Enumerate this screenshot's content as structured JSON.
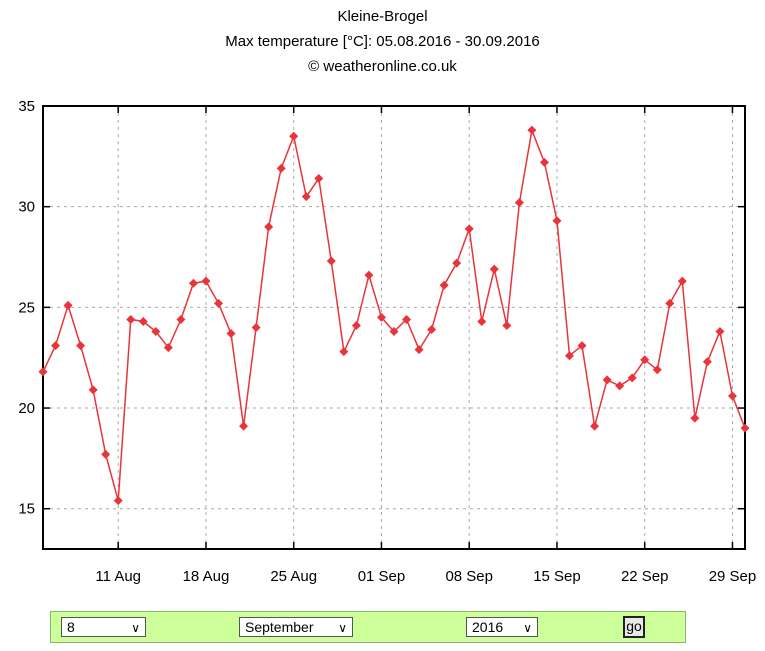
{
  "chart_data": {
    "type": "line",
    "title": "Kleine-Brogel",
    "subtitle": "Max temperature [°C]: 05.08.2016 - 30.09.2016",
    "credit": "© weatheronline.co.uk",
    "xlabel": "",
    "ylabel": "",
    "ylim": [
      13,
      35
    ],
    "y_ticks": [
      15,
      20,
      25,
      30,
      35
    ],
    "x_start": "2016-08-05",
    "x_end": "2016-09-30",
    "x_ticks": [
      {
        "date": "2016-08-11",
        "label": "11 Aug"
      },
      {
        "date": "2016-08-18",
        "label": "18 Aug"
      },
      {
        "date": "2016-08-25",
        "label": "25 Aug"
      },
      {
        "date": "2016-09-01",
        "label": "01 Sep"
      },
      {
        "date": "2016-09-08",
        "label": "08 Sep"
      },
      {
        "date": "2016-09-15",
        "label": "15 Sep"
      },
      {
        "date": "2016-09-22",
        "label": "22 Sep"
      },
      {
        "date": "2016-09-29",
        "label": "29 Sep"
      }
    ],
    "grid": true,
    "series": [
      {
        "color": "#e8343a",
        "x": [
          "2016-08-05",
          "2016-08-06",
          "2016-08-07",
          "2016-08-08",
          "2016-08-09",
          "2016-08-10",
          "2016-08-11",
          "2016-08-12",
          "2016-08-13",
          "2016-08-14",
          "2016-08-15",
          "2016-08-16",
          "2016-08-17",
          "2016-08-18",
          "2016-08-19",
          "2016-08-20",
          "2016-08-21",
          "2016-08-22",
          "2016-08-23",
          "2016-08-24",
          "2016-08-25",
          "2016-08-26",
          "2016-08-27",
          "2016-08-28",
          "2016-08-29",
          "2016-08-30",
          "2016-08-31",
          "2016-09-01",
          "2016-09-02",
          "2016-09-03",
          "2016-09-04",
          "2016-09-05",
          "2016-09-06",
          "2016-09-07",
          "2016-09-08",
          "2016-09-09",
          "2016-09-10",
          "2016-09-11",
          "2016-09-12",
          "2016-09-13",
          "2016-09-14",
          "2016-09-15",
          "2016-09-16",
          "2016-09-17",
          "2016-09-18",
          "2016-09-19",
          "2016-09-20",
          "2016-09-21",
          "2016-09-22",
          "2016-09-23",
          "2016-09-24",
          "2016-09-25",
          "2016-09-26",
          "2016-09-27",
          "2016-09-28",
          "2016-09-29",
          "2016-09-30"
        ],
        "values": [
          21.8,
          23.1,
          25.1,
          23.1,
          20.9,
          17.7,
          15.4,
          24.4,
          24.3,
          23.8,
          23.0,
          24.4,
          26.2,
          26.3,
          25.2,
          23.7,
          19.1,
          24.0,
          29.0,
          31.9,
          33.5,
          30.5,
          31.4,
          27.3,
          22.8,
          24.1,
          26.6,
          24.5,
          23.8,
          24.4,
          22.9,
          23.9,
          26.1,
          27.2,
          28.9,
          24.3,
          26.9,
          24.1,
          30.2,
          33.8,
          32.2,
          29.3,
          22.6,
          23.1,
          19.1,
          21.4,
          21.1,
          21.5,
          22.4,
          21.9,
          25.2,
          26.3,
          19.5,
          22.3,
          23.8,
          20.6,
          19.0
        ]
      }
    ]
  },
  "controls": {
    "day": "8",
    "month": "September",
    "year": "2016",
    "go_label": "go"
  }
}
